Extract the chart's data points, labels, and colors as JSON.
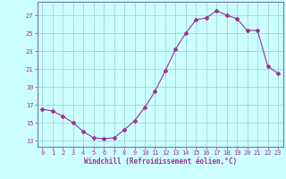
{
  "x": [
    0,
    1,
    2,
    3,
    4,
    5,
    6,
    7,
    8,
    9,
    10,
    11,
    12,
    13,
    14,
    15,
    16,
    17,
    18,
    19,
    20,
    21,
    22,
    23
  ],
  "y": [
    16.5,
    16.3,
    15.7,
    15.0,
    14.0,
    13.3,
    13.2,
    13.3,
    14.2,
    15.2,
    16.7,
    18.5,
    20.8,
    23.2,
    25.0,
    26.5,
    26.7,
    27.5,
    27.0,
    26.6,
    25.3,
    25.3,
    21.3,
    20.5
  ],
  "line_color": "#993399",
  "marker": "D",
  "marker_size": 2,
  "bg_color": "#ccffff",
  "grid_color": "#99cccc",
  "xlabel": "Windchill (Refroidissement éolien,°C)",
  "yticks": [
    13,
    15,
    17,
    19,
    21,
    23,
    25,
    27
  ],
  "ylim": [
    12.3,
    28.5
  ],
  "xlim": [
    -0.5,
    23.5
  ],
  "xticks": [
    0,
    1,
    2,
    3,
    4,
    5,
    6,
    7,
    8,
    9,
    10,
    11,
    12,
    13,
    14,
    15,
    16,
    17,
    18,
    19,
    20,
    21,
    22,
    23
  ],
  "axis_color": "#7777aa",
  "tick_color": "#993399",
  "label_color": "#993399",
  "tick_fontsize": 5.0,
  "xlabel_fontsize": 5.5
}
